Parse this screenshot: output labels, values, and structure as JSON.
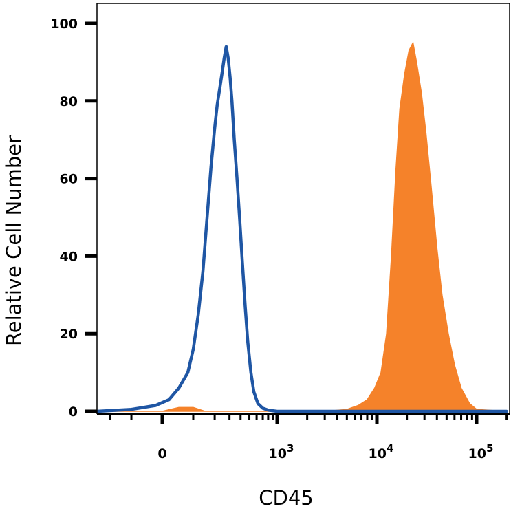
{
  "chart_data": {
    "type": "area",
    "title": "",
    "xlabel": "CD45",
    "ylabel": "Relative Cell Number",
    "x_scale": "biexponential",
    "ylim": [
      0,
      100
    ],
    "y_ticks": [
      "0",
      "20",
      "40",
      "60",
      "80",
      "100"
    ],
    "y_tick_values": [
      0,
      20,
      40,
      60,
      80,
      100
    ],
    "x_ticks": [
      {
        "value": 0,
        "base": "0",
        "exp": ""
      },
      {
        "value": 1000,
        "base": "10",
        "exp": "3"
      },
      {
        "value": 10000,
        "base": "10",
        "exp": "4"
      },
      {
        "value": 100000,
        "base": "10",
        "exp": "5"
      }
    ],
    "grid": false,
    "legend": "none",
    "series": [
      {
        "style": "outline",
        "color": "#1f56a4",
        "x": [
          -1000,
          -300,
          -100,
          -20,
          20,
          50,
          80,
          100,
          120,
          140,
          160,
          180,
          200,
          215,
          230,
          245,
          260,
          275,
          290,
          305,
          320,
          340,
          365,
          390,
          420,
          450,
          480,
          520,
          560,
          620,
          700,
          800,
          1000,
          5000,
          200000
        ],
        "y": [
          0,
          0,
          0.5,
          1.5,
          3,
          6,
          10,
          16,
          25,
          36,
          50,
          63,
          73,
          79,
          83,
          87,
          91,
          94,
          91,
          86,
          80,
          70,
          60,
          50,
          38,
          27,
          18,
          10,
          5,
          2,
          0.8,
          0.3,
          0,
          0,
          0
        ]
      },
      {
        "style": "filled",
        "color": "#f5822a",
        "x": [
          -1000,
          0,
          50,
          100,
          150,
          500,
          1000,
          3000,
          5000,
          6500,
          8000,
          9500,
          11000,
          12500,
          14000,
          15500,
          17000,
          19000,
          21000,
          23000,
          25000,
          28000,
          31000,
          35000,
          40000,
          45000,
          52000,
          60000,
          70000,
          85000,
          100000,
          200000
        ],
        "y": [
          0,
          0,
          1,
          1,
          0,
          0,
          0,
          0,
          0.5,
          1.5,
          3,
          6,
          10,
          20,
          40,
          62,
          78,
          87,
          93,
          95,
          90,
          82,
          72,
          58,
          42,
          30,
          20,
          12,
          6,
          2,
          0.5,
          0
        ]
      }
    ]
  }
}
